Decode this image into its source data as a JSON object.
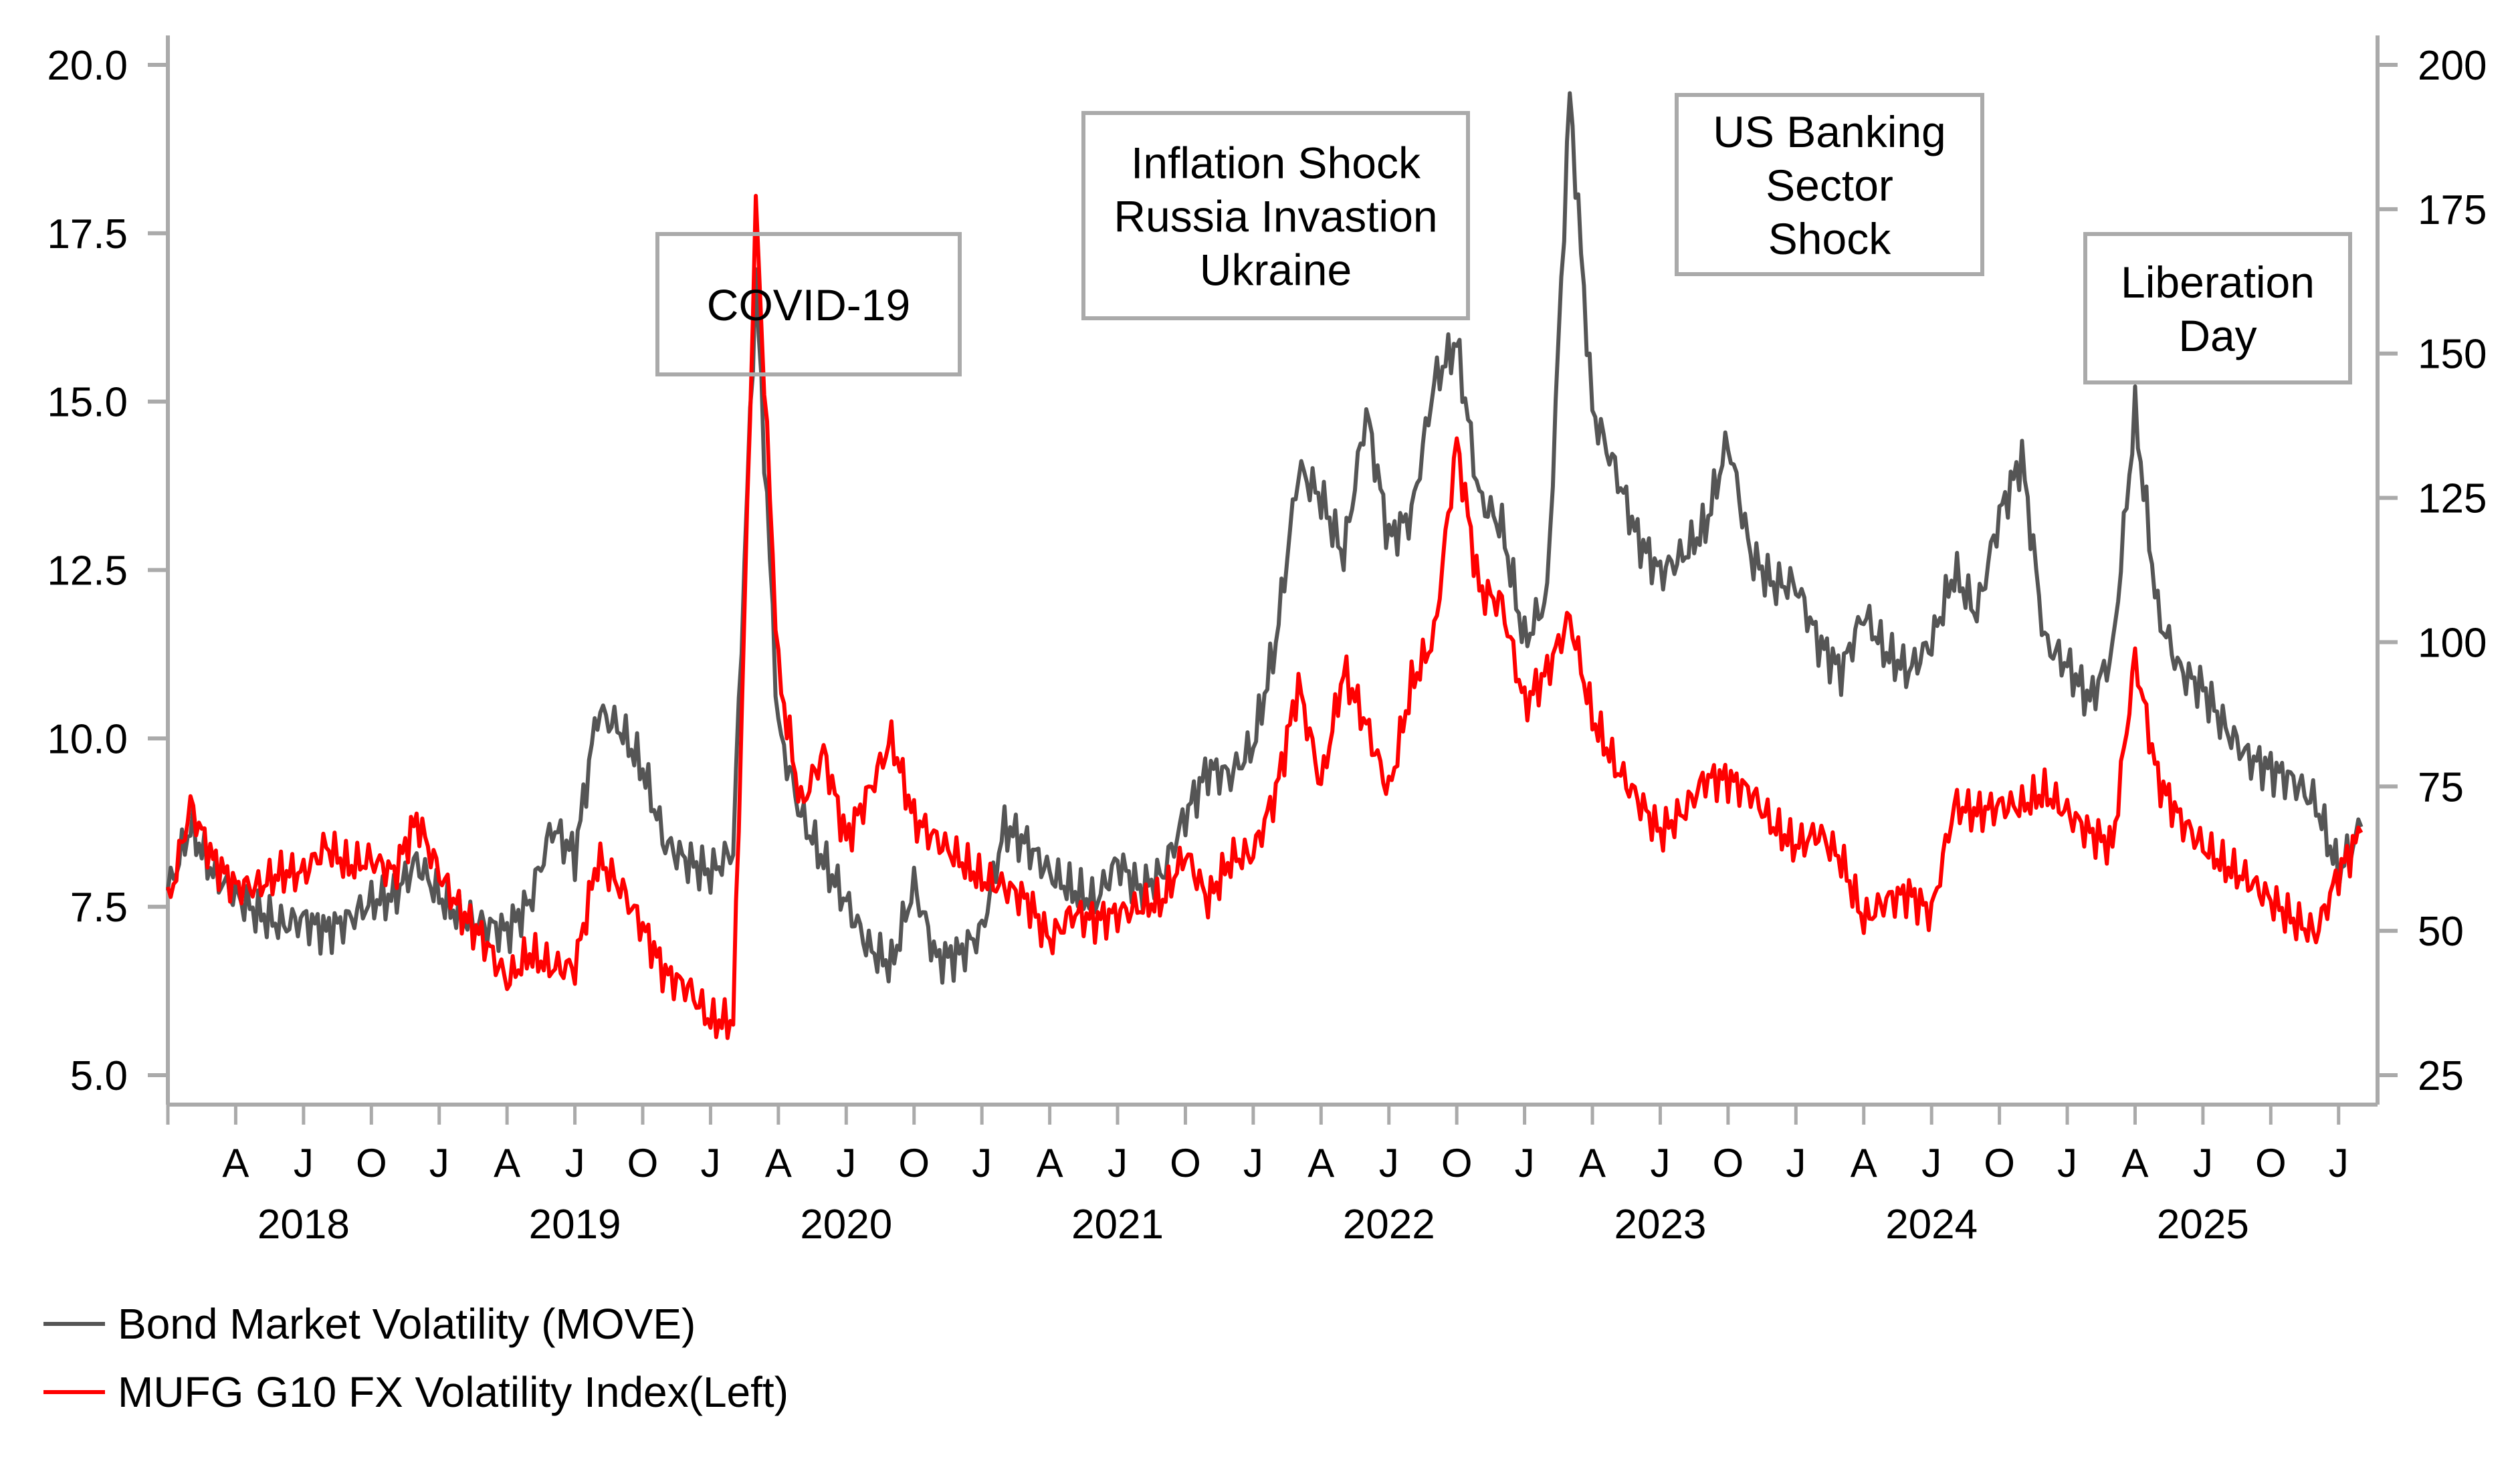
{
  "chart_data": {
    "type": "line",
    "title": "",
    "x_start": "2018-01",
    "x_frequency": "monthly",
    "x_end": "2026-02",
    "month_tick_labels": [
      "J",
      "A",
      "J",
      "O"
    ],
    "year_labels": [
      "2018",
      "2019",
      "2020",
      "2021",
      "2022",
      "2023",
      "2024",
      "2025"
    ],
    "left_axis": {
      "ylim": [
        5.0,
        20.0
      ],
      "ticks": [
        "5.0",
        "7.5",
        "10.0",
        "12.5",
        "15.0",
        "17.5",
        "20.0"
      ],
      "tick_values": [
        5,
        7.5,
        10,
        12.5,
        15,
        17.5,
        20
      ]
    },
    "right_axis": {
      "ylim": [
        25,
        200
      ],
      "ticks": [
        "25",
        "50",
        "75",
        "100",
        "125",
        "150",
        "175",
        "200"
      ],
      "tick_values": [
        25,
        50,
        75,
        100,
        125,
        150,
        175,
        200
      ]
    },
    "series": [
      {
        "name": "Bond Market Volatility (MOVE)",
        "axis": "right",
        "color": "#555555",
        "values": [
          57,
          68,
          60,
          56,
          53,
          51,
          52,
          50,
          52,
          55,
          56,
          62,
          56,
          52,
          51,
          50,
          55,
          68,
          63,
          88,
          85,
          78,
          65,
          62,
          60,
          64,
          163,
          85,
          70,
          62,
          55,
          47,
          44,
          58,
          45,
          46,
          50,
          68,
          65,
          60,
          57,
          55,
          62,
          57,
          60,
          70,
          78,
          77,
          82,
          100,
          130,
          125,
          115,
          140,
          118,
          122,
          145,
          152,
          125,
          120,
          100,
          108,
          195,
          140,
          130,
          118,
          112,
          115,
          120,
          135,
          115,
          110,
          110,
          100,
          95,
          105,
          98,
          95,
          100,
          112,
          105,
          122,
          132,
          100,
          96,
          90,
          98,
          140,
          105,
          95,
          92,
          85,
          80,
          78,
          76,
          72,
          60,
          68
        ]
      },
      {
        "name": "MUFG G10 FX Volatility Index(Left)",
        "axis": "left",
        "color": "#ff0000",
        "values": [
          7.5,
          9.0,
          8.2,
          7.8,
          7.8,
          8.0,
          8.0,
          8.4,
          8.1,
          8.2,
          8.0,
          8.8,
          8.0,
          7.4,
          7.0,
          6.4,
          6.8,
          6.6,
          6.6,
          8.2,
          7.8,
          7.2,
          6.5,
          6.3,
          5.8,
          5.8,
          17.9,
          11.0,
          9.0,
          9.8,
          8.5,
          9.2,
          10.0,
          8.8,
          8.5,
          8.2,
          7.9,
          7.8,
          7.6,
          7.0,
          7.4,
          7.3,
          7.4,
          7.5,
          7.6,
          8.3,
          7.6,
          8.2,
          8.3,
          9.2,
          10.8,
          9.3,
          11.0,
          10.2,
          9.2,
          10.8,
          11.5,
          14.4,
          12.2,
          12.0,
          10.5,
          11.0,
          11.8,
          10.3,
          9.6,
          9.1,
          8.6,
          8.9,
          9.4,
          9.4,
          9.2,
          8.7,
          8.4,
          8.6,
          8.2,
          7.3,
          7.6,
          7.7,
          7.4,
          9.0,
          8.9,
          9.0,
          9.0,
          9.2,
          8.9,
          8.6,
          8.4,
          11.2,
          9.4,
          8.8,
          8.4,
          8.1,
          7.9,
          7.6,
          7.3,
          7.1,
          8.0,
          8.6
        ]
      }
    ],
    "annotations": [
      {
        "id": "covid",
        "lines": [
          "COVID-19"
        ]
      },
      {
        "id": "inflation",
        "lines": [
          "Inflation Shock",
          "Russia Invastion",
          "Ukraine"
        ]
      },
      {
        "id": "banking",
        "lines": [
          "US Banking",
          "Sector",
          "Shock"
        ]
      },
      {
        "id": "liberation",
        "lines": [
          "Liberation",
          "Day"
        ]
      }
    ],
    "legend": {
      "placement": "bottom-left",
      "entries": [
        "Bond Market Volatility (MOVE)",
        "MUFG G10 FX Volatility Index(Left)"
      ]
    },
    "grid": false
  }
}
